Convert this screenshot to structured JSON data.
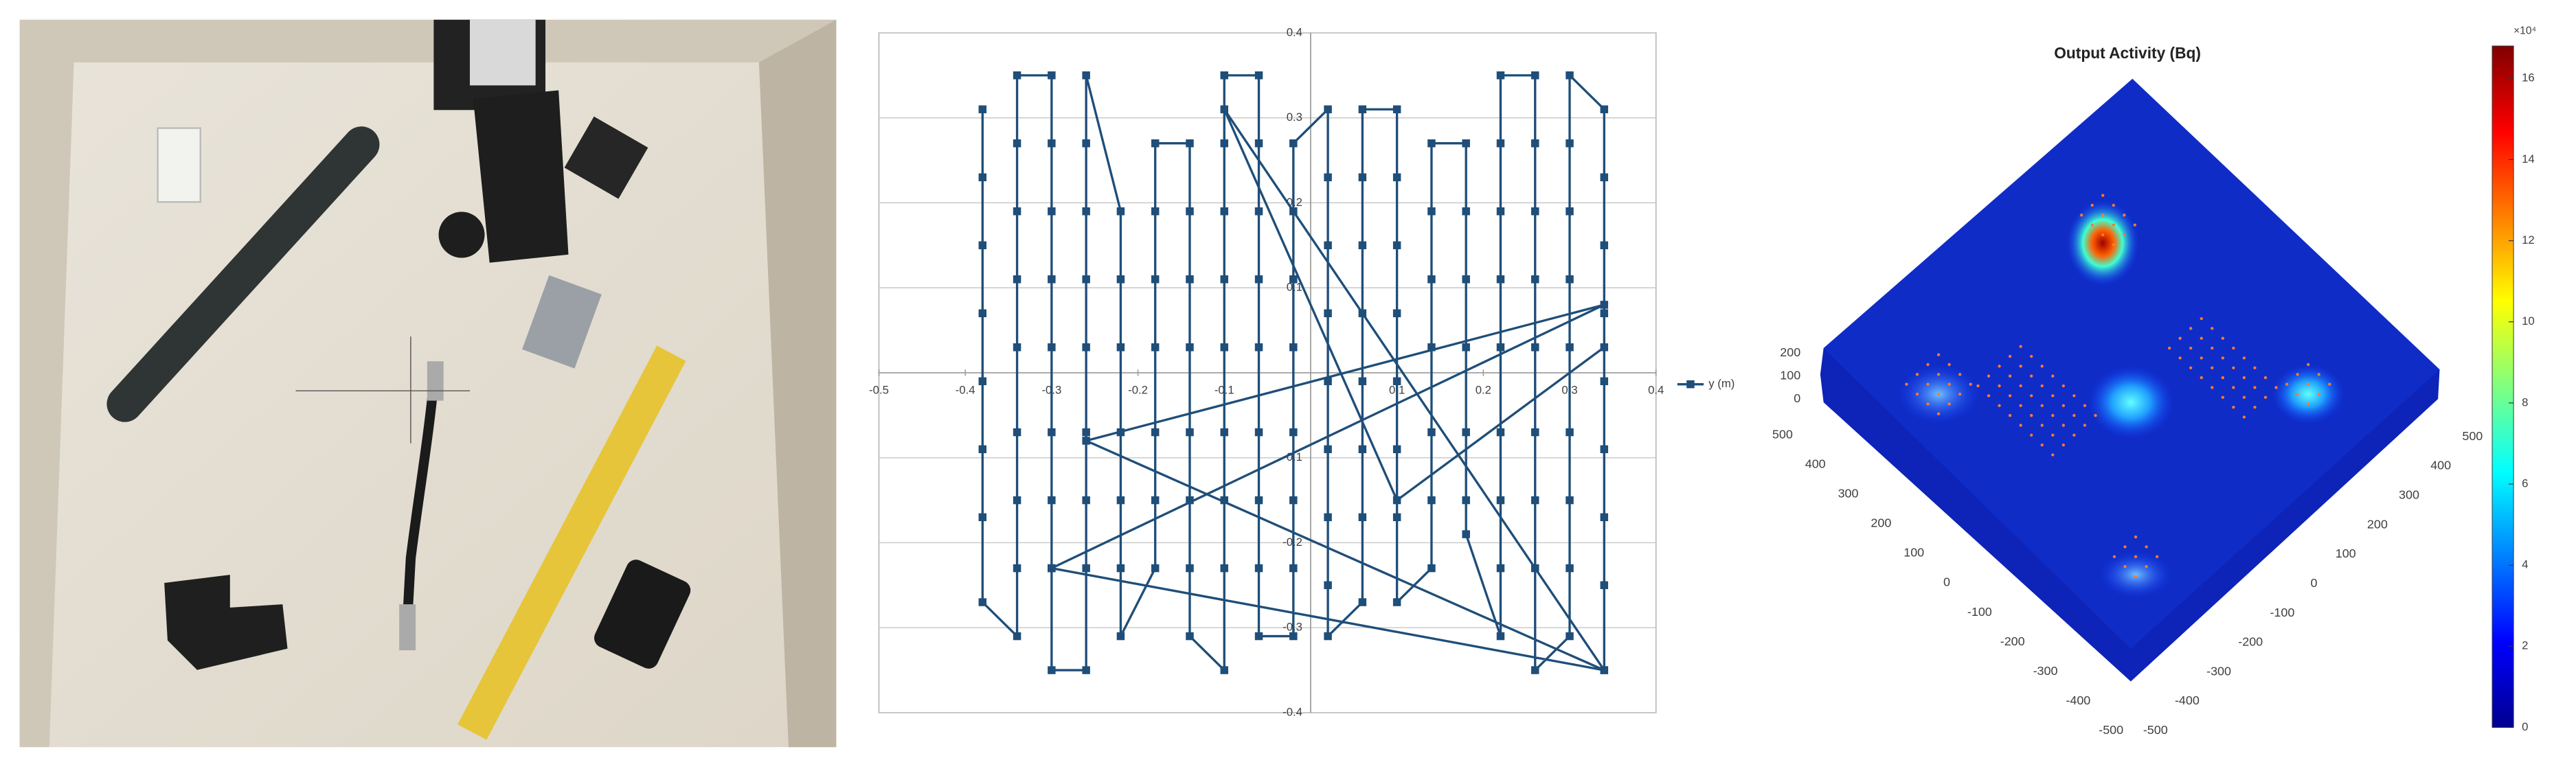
{
  "chart_data": [
    {
      "type": "line",
      "xlim": [
        -0.5,
        0.4
      ],
      "ylim": [
        -0.4,
        0.4
      ],
      "xticks": [
        -0.5,
        -0.4,
        -0.3,
        -0.2,
        -0.1,
        0.1,
        0.2,
        0.3,
        0.4
      ],
      "yticks": [
        -0.4,
        -0.3,
        -0.2,
        -0.1,
        0.1,
        0.2,
        0.3,
        0.4
      ],
      "grid": true,
      "legend": "right",
      "x": [
        -0.38,
        -0.38,
        -0.38,
        -0.38,
        -0.38,
        -0.38,
        -0.38,
        -0.38,
        -0.34,
        -0.34,
        -0.34,
        -0.34,
        -0.34,
        -0.34,
        -0.34,
        -0.34,
        -0.34,
        -0.3,
        -0.3,
        -0.3,
        -0.3,
        -0.3,
        -0.3,
        -0.3,
        -0.3,
        -0.3,
        -0.26,
        -0.26,
        -0.26,
        -0.26,
        -0.26,
        -0.26,
        -0.26,
        -0.26,
        -0.26,
        -0.22,
        -0.22,
        -0.22,
        -0.22,
        -0.22,
        -0.22,
        -0.22,
        -0.18,
        -0.18,
        -0.18,
        -0.18,
        -0.18,
        -0.18,
        -0.18,
        -0.14,
        -0.14,
        -0.14,
        -0.14,
        -0.14,
        -0.14,
        -0.14,
        -0.14,
        -0.1,
        -0.1,
        -0.1,
        -0.1,
        -0.1,
        -0.1,
        -0.1,
        -0.1,
        -0.1,
        -0.06,
        -0.06,
        -0.06,
        -0.06,
        -0.06,
        -0.06,
        -0.06,
        -0.06,
        -0.06,
        -0.02,
        -0.02,
        -0.02,
        -0.02,
        -0.02,
        -0.02,
        -0.02,
        -0.02,
        0.02,
        0.02,
        0.02,
        0.02,
        0.02,
        0.02,
        0.02,
        0.02,
        0.02,
        0.06,
        0.06,
        0.06,
        0.06,
        0.06,
        0.06,
        0.06,
        0.06,
        0.1,
        0.1,
        0.1,
        0.1,
        0.1,
        0.1,
        0.1,
        0.1,
        0.14,
        0.14,
        0.14,
        0.14,
        0.14,
        0.14,
        0.14,
        0.18,
        0.18,
        0.18,
        0.18,
        0.18,
        0.18,
        0.18,
        0.22,
        0.22,
        0.22,
        0.22,
        0.22,
        0.22,
        0.22,
        0.22,
        0.22,
        0.26,
        0.26,
        0.26,
        0.26,
        0.26,
        0.26,
        0.26,
        0.26,
        0.26,
        0.3,
        0.3,
        0.3,
        0.3,
        0.3,
        0.3,
        0.3,
        0.3,
        0.3,
        0.34,
        0.34,
        0.34,
        0.34,
        0.34,
        0.34,
        0.34,
        0.34,
        0.34,
        -0.26,
        0.34,
        -0.3,
        0.34,
        -0.1,
        0.1,
        0.34
      ],
      "series": [
        {
          "name": "y (m)",
          "color": "#1f4e79",
          "values": [
            0.31,
            0.23,
            0.15,
            0.07,
            -0.01,
            -0.09,
            -0.17,
            -0.27,
            -0.31,
            -0.23,
            -0.15,
            -0.07,
            0.03,
            0.11,
            0.19,
            0.27,
            0.35,
            0.35,
            0.27,
            0.19,
            0.11,
            0.03,
            -0.07,
            -0.15,
            -0.23,
            -0.35,
            -0.35,
            -0.23,
            -0.15,
            -0.07,
            0.03,
            0.11,
            0.19,
            0.27,
            0.35,
            0.19,
            0.11,
            0.03,
            -0.07,
            -0.15,
            -0.23,
            -0.31,
            -0.23,
            -0.15,
            -0.07,
            0.03,
            0.11,
            0.19,
            0.27,
            0.27,
            0.19,
            0.11,
            0.03,
            -0.07,
            -0.15,
            -0.23,
            -0.31,
            -0.35,
            -0.23,
            -0.15,
            -0.07,
            0.03,
            0.11,
            0.19,
            0.27,
            0.35,
            0.35,
            0.27,
            0.19,
            0.11,
            0.03,
            -0.07,
            -0.15,
            -0.23,
            -0.31,
            -0.31,
            -0.23,
            -0.15,
            -0.07,
            0.03,
            0.11,
            0.19,
            0.27,
            0.31,
            0.23,
            0.15,
            0.07,
            -0.01,
            -0.09,
            -0.17,
            -0.25,
            -0.31,
            -0.27,
            -0.17,
            -0.09,
            -0.01,
            0.07,
            0.15,
            0.23,
            0.31,
            0.31,
            0.23,
            0.15,
            0.07,
            -0.01,
            -0.09,
            -0.17,
            -0.27,
            -0.23,
            -0.15,
            -0.07,
            0.03,
            0.11,
            0.19,
            0.27,
            0.27,
            0.19,
            0.11,
            0.03,
            -0.07,
            -0.15,
            -0.19,
            -0.31,
            -0.23,
            -0.15,
            -0.07,
            0.03,
            0.11,
            0.19,
            0.27,
            0.35,
            0.35,
            0.27,
            0.19,
            0.11,
            0.03,
            -0.07,
            -0.15,
            -0.23,
            -0.35,
            -0.31,
            -0.23,
            -0.15,
            -0.07,
            0.03,
            0.11,
            0.19,
            0.27,
            0.35,
            0.31,
            0.23,
            0.15,
            0.07,
            -0.01,
            -0.09,
            -0.17,
            -0.25,
            -0.35,
            -0.08,
            0.08,
            -0.23,
            -0.35,
            0.31,
            -0.15,
            0.03
          ]
        }
      ]
    },
    {
      "type": "surface3d",
      "title": "Output Activity (Bq)",
      "xticks": [
        -500,
        -400,
        -300,
        -200,
        -100,
        0,
        100,
        200,
        300,
        400,
        500
      ],
      "yticks": [
        -500,
        -400,
        -300,
        -200,
        -100,
        0,
        100,
        200,
        300,
        400,
        500
      ],
      "zticks": [
        0,
        100,
        200
      ],
      "colorbar": {
        "lim": [
          0,
          16.8
        ],
        "ticks": [
          0,
          2,
          4,
          6,
          8,
          10,
          12,
          14,
          16
        ],
        "multiplier": "×10⁴"
      }
    }
  ]
}
